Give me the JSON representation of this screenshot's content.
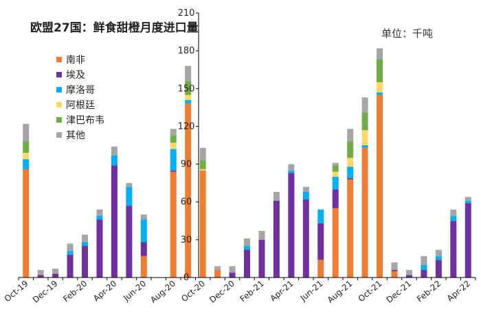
{
  "chart_data": {
    "type": "bar",
    "stacked": true,
    "title": "欧盟27国：鲜食甜橙月度进口量",
    "unit_label": "单位：千吨",
    "ylim": [
      0,
      210
    ],
    "y_ticks": [
      0,
      30,
      60,
      90,
      120,
      150,
      180,
      210
    ],
    "grid": false,
    "legend_position": "top-left",
    "categories": [
      "Oct-19",
      "Nov-19",
      "Dec-19",
      "Jan-20",
      "Feb-20",
      "Mar-20",
      "Apr-20",
      "May-20",
      "Jun-20",
      "Jul-20",
      "Aug-20",
      "Sep-20",
      "Oct-20",
      "Nov-20",
      "Dec-20",
      "Jan-21",
      "Feb-21",
      "Mar-21",
      "Apr-21",
      "May-21",
      "Jun-21",
      "Jul-21",
      "Aug-21",
      "Sep-21",
      "Oct-21",
      "Nov-21",
      "Dec-21",
      "Jan-22",
      "Feb-22",
      "Mar-22",
      "Apr-22"
    ],
    "x_tick_labels": [
      "Oct-19",
      "Dec-19",
      "Feb-20",
      "Apr-20",
      "Jun-20",
      "Aug-20",
      "Oct-20",
      "Dec-20",
      "Feb-21",
      "Apr-21",
      "Jun-21",
      "Aug-21",
      "Oct-21",
      "Dec-21",
      "Feb-22",
      "Apr-22"
    ],
    "series": [
      {
        "name": "南非",
        "color": "#ED7D31",
        "values": [
          86,
          0,
          0,
          0,
          0,
          0,
          0,
          0,
          17,
          0,
          84,
          138,
          85,
          6,
          0,
          0,
          0,
          0,
          0,
          0,
          14,
          55,
          78,
          103,
          145,
          5,
          0,
          0,
          0,
          0,
          0
        ]
      },
      {
        "name": "埃及",
        "color": "#7030A0",
        "values": [
          0,
          2,
          3,
          18,
          25,
          46,
          89,
          57,
          11,
          0,
          1,
          0,
          0,
          0,
          4,
          22,
          30,
          61,
          83,
          62,
          29,
          15,
          1,
          0,
          0,
          1,
          2,
          6,
          14,
          45,
          59
        ]
      },
      {
        "name": "摩洛哥",
        "color": "#00B0F0",
        "values": [
          8,
          0,
          0,
          3,
          3,
          3,
          8,
          15,
          18,
          0,
          17,
          3,
          0,
          0,
          0,
          3,
          0,
          0,
          2,
          6,
          11,
          10,
          9,
          2,
          2,
          0,
          0,
          4,
          3,
          4,
          2
        ]
      },
      {
        "name": "阿根廷",
        "color": "#FFD966",
        "values": [
          5,
          0,
          0,
          0,
          0,
          0,
          0,
          0,
          0,
          0,
          5,
          4,
          1,
          0,
          0,
          0,
          0,
          0,
          0,
          0,
          0,
          4,
          7,
          12,
          8,
          0,
          0,
          0,
          0,
          0,
          0
        ]
      },
      {
        "name": "津巴布韦",
        "color": "#70AD47",
        "values": [
          9,
          0,
          0,
          0,
          0,
          0,
          0,
          0,
          0,
          0,
          6,
          11,
          7,
          0,
          0,
          0,
          0,
          0,
          0,
          0,
          0,
          5,
          13,
          14,
          18,
          0,
          0,
          0,
          0,
          0,
          0
        ]
      },
      {
        "name": "其他",
        "color": "#A5A5A5",
        "values": [
          14,
          4,
          4,
          6,
          6,
          5,
          7,
          3,
          4,
          0,
          5,
          12,
          10,
          3,
          5,
          6,
          7,
          7,
          5,
          4,
          0,
          2,
          10,
          12,
          9,
          6,
          4,
          7,
          5,
          5,
          3
        ]
      }
    ]
  }
}
